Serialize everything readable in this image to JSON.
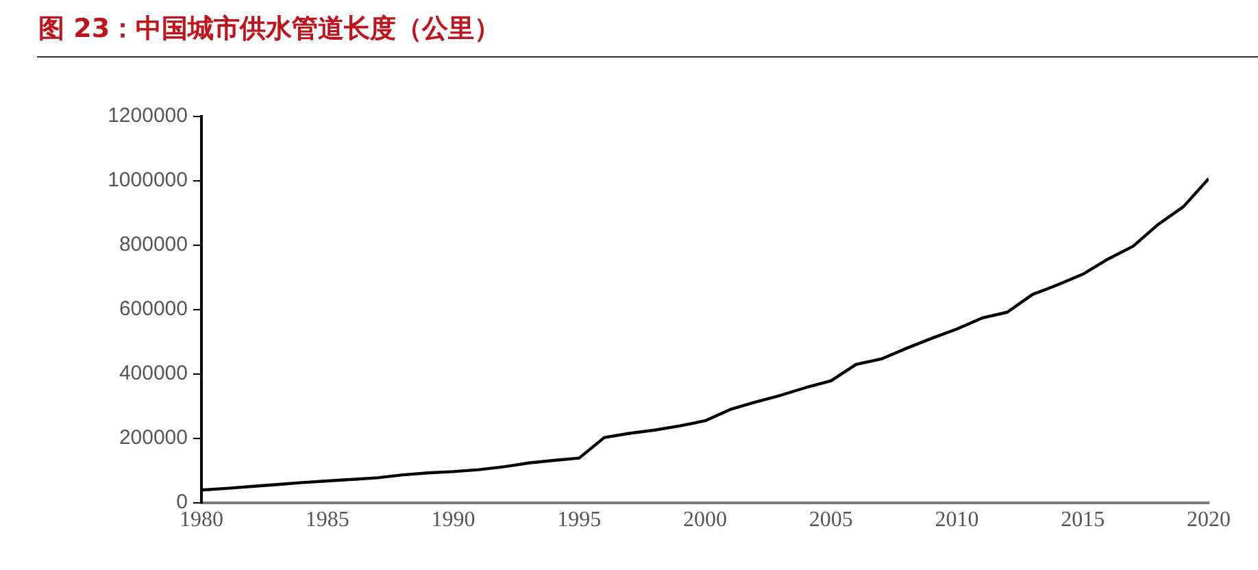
{
  "chart_data": {
    "type": "line",
    "title": "图 23：中国城市供水管道长度（公里）",
    "x": [
      1980,
      1981,
      1982,
      1983,
      1984,
      1985,
      1986,
      1987,
      1988,
      1989,
      1990,
      1991,
      1992,
      1993,
      1994,
      1995,
      1996,
      1997,
      1998,
      1999,
      2000,
      2001,
      2002,
      2003,
      2004,
      2005,
      2006,
      2007,
      2008,
      2009,
      2010,
      2011,
      2012,
      2013,
      2014,
      2015,
      2016,
      2017,
      2018,
      2019,
      2020
    ],
    "series": [
      {
        "color": "#000000",
        "values": [
          40000,
          45000,
          51000,
          57000,
          63000,
          68000,
          73000,
          78000,
          87000,
          93000,
          97000,
          103000,
          112000,
          124000,
          132000,
          139000,
          203000,
          216000,
          226000,
          239000,
          255000,
          290000,
          313000,
          334000,
          358000,
          379000,
          430000,
          447000,
          480000,
          511000,
          540000,
          574000,
          592000,
          647000,
          677000,
          710000,
          757000,
          797000,
          865000,
          920000,
          1007000
        ]
      }
    ],
    "xlim": [
      1980,
      2020
    ],
    "xticks": [
      1980,
      1985,
      1990,
      1995,
      2000,
      2005,
      2010,
      2015,
      2020
    ],
    "ylim": [
      0,
      1200000
    ],
    "yticks": [
      0,
      200000,
      400000,
      600000,
      800000,
      1000000,
      1200000
    ],
    "grid": false,
    "legend": false,
    "marker": "none",
    "line_style": "solid"
  }
}
